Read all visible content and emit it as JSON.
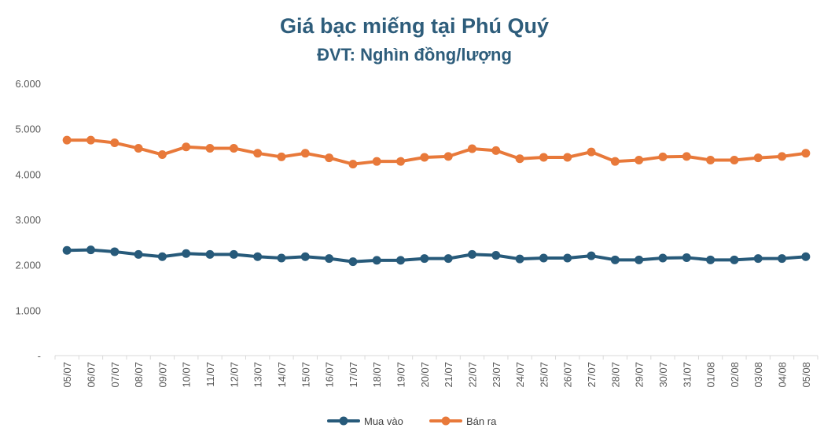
{
  "chart_data": {
    "type": "line",
    "title": "Giá bạc miếng tại Phú Quý",
    "subtitle": "ĐVT: Nghìn đồng/lượng",
    "categories": [
      "05/07",
      "06/07",
      "07/07",
      "08/07",
      "09/07",
      "10/07",
      "11/07",
      "12/07",
      "13/07",
      "14/07",
      "15/07",
      "16/07",
      "17/07",
      "18/07",
      "19/07",
      "20/07",
      "21/07",
      "22/07",
      "23/07",
      "24/07",
      "25/07",
      "26/07",
      "27/07",
      "28/07",
      "29/07",
      "30/07",
      "31/07",
      "01/08",
      "02/08",
      "03/08",
      "04/08",
      "05/08"
    ],
    "series": [
      {
        "name": "Mua vào",
        "color": "#275a7a",
        "values": [
          2320,
          2330,
          2290,
          2230,
          2180,
          2250,
          2230,
          2230,
          2180,
          2150,
          2180,
          2140,
          2070,
          2100,
          2100,
          2140,
          2140,
          2230,
          2210,
          2130,
          2150,
          2150,
          2200,
          2110,
          2110,
          2150,
          2160,
          2110,
          2110,
          2140,
          2140,
          2180
        ]
      },
      {
        "name": "Bán ra",
        "color": "#e8793a",
        "values": [
          4750,
          4750,
          4690,
          4570,
          4430,
          4600,
          4570,
          4570,
          4460,
          4380,
          4460,
          4360,
          4220,
          4280,
          4280,
          4370,
          4390,
          4560,
          4520,
          4340,
          4370,
          4370,
          4490,
          4280,
          4310,
          4380,
          4390,
          4310,
          4310,
          4360,
          4390,
          4460
        ]
      }
    ],
    "yticks": [
      "-",
      "1.000",
      "2.000",
      "3.000",
      "4.000",
      "5.000",
      "6.000"
    ],
    "ylim": [
      0,
      6000
    ],
    "grid": false,
    "legend": "bottom-center"
  }
}
